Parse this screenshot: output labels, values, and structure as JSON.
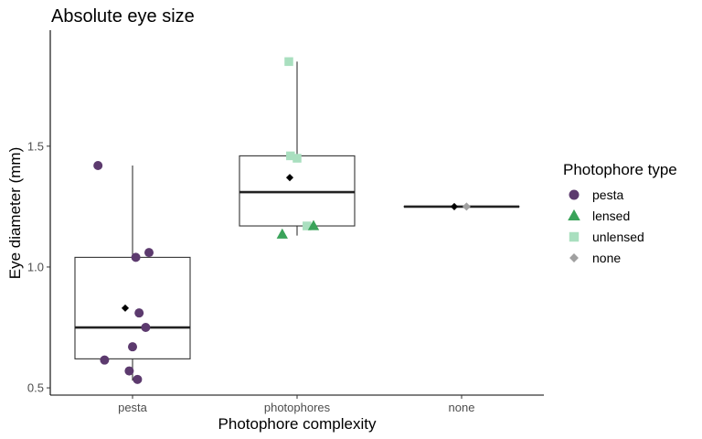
{
  "chart_data": {
    "type": "boxplot",
    "title": "Absolute eye size",
    "xlabel": "Photophore complexity",
    "ylabel": "Eye diameter (mm)",
    "categories": [
      "pesta",
      "photophores",
      "none"
    ],
    "ylim": [
      0.47,
      1.98
    ],
    "yticks": [
      0.5,
      1.0,
      1.5
    ],
    "ytick_labels": [
      "0.5",
      "1.0",
      "1.5"
    ],
    "grid": false,
    "boxes": [
      {
        "category": "pesta",
        "q1": 0.62,
        "median": 0.75,
        "q3": 1.04,
        "whisker_low": 0.53,
        "whisker_high": 1.42,
        "mean": 0.83
      },
      {
        "category": "photophores",
        "q1": 1.17,
        "median": 1.31,
        "q3": 1.46,
        "whisker_low": 1.13,
        "whisker_high": 1.85,
        "mean": 1.37
      },
      {
        "category": "none",
        "q1": 1.25,
        "median": 1.25,
        "q3": 1.25,
        "whisker_low": 1.25,
        "whisker_high": 1.25,
        "mean": 1.25
      }
    ],
    "points": [
      {
        "category": "pesta",
        "type": "pesta",
        "jitter": -0.21,
        "y": 1.42
      },
      {
        "category": "pesta",
        "type": "pesta",
        "jitter": 0.02,
        "y": 1.04
      },
      {
        "category": "pesta",
        "type": "pesta",
        "jitter": 0.1,
        "y": 1.06
      },
      {
        "category": "pesta",
        "type": "pesta",
        "jitter": 0.04,
        "y": 0.81
      },
      {
        "category": "pesta",
        "type": "pesta",
        "jitter": 0.08,
        "y": 0.75
      },
      {
        "category": "pesta",
        "type": "pesta",
        "jitter": 0.0,
        "y": 0.67
      },
      {
        "category": "pesta",
        "type": "pesta",
        "jitter": -0.17,
        "y": 0.615
      },
      {
        "category": "pesta",
        "type": "pesta",
        "jitter": -0.02,
        "y": 0.57
      },
      {
        "category": "pesta",
        "type": "pesta",
        "jitter": 0.03,
        "y": 0.535
      },
      {
        "category": "photophores",
        "type": "unlensed",
        "jitter": -0.05,
        "y": 1.85
      },
      {
        "category": "photophores",
        "type": "unlensed",
        "jitter": -0.04,
        "y": 1.46
      },
      {
        "category": "photophores",
        "type": "unlensed",
        "jitter": 0.0,
        "y": 1.45
      },
      {
        "category": "photophores",
        "type": "unlensed",
        "jitter": 0.06,
        "y": 1.17
      },
      {
        "category": "photophores",
        "type": "lensed",
        "jitter": 0.1,
        "y": 1.17
      },
      {
        "category": "photophores",
        "type": "lensed",
        "jitter": -0.09,
        "y": 1.135
      },
      {
        "category": "none",
        "type": "none",
        "jitter": 0.03,
        "y": 1.25
      }
    ],
    "legend": {
      "title": "Photophore type",
      "position": "right",
      "entries": [
        {
          "label": "pesta",
          "shape": "circle",
          "color": "#5c3a6e"
        },
        {
          "label": "lensed",
          "shape": "triangle",
          "color": "#3aa35a"
        },
        {
          "label": "unlensed",
          "shape": "square",
          "color": "#a9dfbf"
        },
        {
          "label": "none",
          "shape": "diamond",
          "color": "#a0a0a0"
        }
      ]
    },
    "mean_marker_color": "#000000"
  }
}
